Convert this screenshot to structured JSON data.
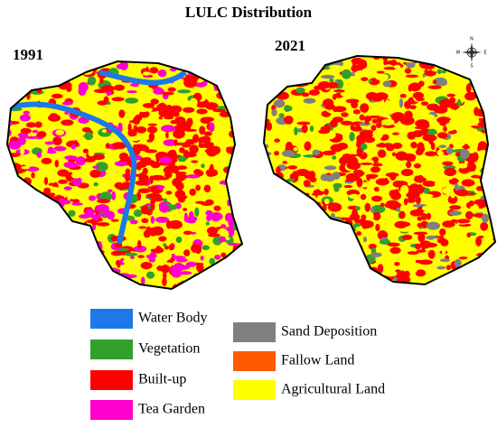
{
  "title": "LULC Distribution",
  "maps": [
    {
      "label": "1991"
    },
    {
      "label": "2021"
    }
  ],
  "compass": {
    "n": "N",
    "s": "S",
    "e": "E",
    "w": "W"
  },
  "legend": [
    {
      "label": "Water Body",
      "color": "#1f78e8"
    },
    {
      "label": "Vegetation",
      "color": "#33a02c"
    },
    {
      "label": "Built-up",
      "color": "#ff0000"
    },
    {
      "label": "Tea Garden",
      "color": "#ff00cc"
    },
    {
      "label": "Sand Deposition",
      "color": "#808080"
    },
    {
      "label": "Fallow Land",
      "color": "#ff5a00"
    },
    {
      "label": "Agricultural Land",
      "color": "#ffff00"
    }
  ]
}
